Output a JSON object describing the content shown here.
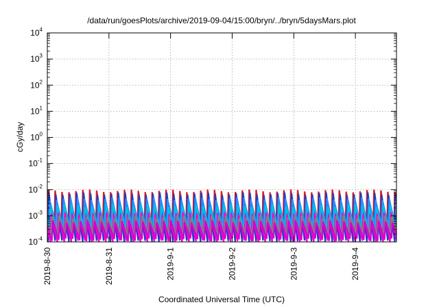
{
  "chart_data": {
    "type": "line",
    "title": "/data/run/goesPlots/archive/2019-09-04/15:00/bryn/../bryn/5daysMars.plot",
    "xlabel": "Coordinated Universal Time (UTC)",
    "ylabel": "cGy/day",
    "yscale": "log",
    "ylim": [
      0.0001,
      10000
    ],
    "ytick_labels": [
      {
        "base": "10",
        "exp": "-4"
      },
      {
        "base": "10",
        "exp": "-3"
      },
      {
        "base": "10",
        "exp": "-2"
      },
      {
        "base": "10",
        "exp": "-1"
      },
      {
        "base": "10",
        "exp": "0"
      },
      {
        "base": "10",
        "exp": "1"
      },
      {
        "base": "10",
        "exp": "2"
      },
      {
        "base": "10",
        "exp": "3"
      },
      {
        "base": "10",
        "exp": "4"
      }
    ],
    "xlim": [
      "2019-08-30 00:00",
      "2019-09-04 16:00"
    ],
    "xtick_labels": [
      "2019-8-30",
      "2019-8-31",
      "2019-9-1",
      "2019-9-2",
      "2019-9-3",
      "2019-9-4"
    ],
    "grid": true,
    "legend": "none",
    "series_pattern": {
      "shape": "sawtooth",
      "period_hours": 2.7,
      "note_values": "approximate per-series min and max levels read off the log axis"
    },
    "series": [
      {
        "color": "#e41a1c",
        "min": 0.0002,
        "max": 0.009
      },
      {
        "color": "#1f3fbf",
        "min": 0.0001,
        "max": 0.007
      },
      {
        "color": "#2b8cff",
        "min": 0.0004,
        "max": 0.0045
      },
      {
        "color": "#00c0e0",
        "min": 0.0002,
        "max": 0.0025
      },
      {
        "color": "#ff00d0",
        "min": 0.0001,
        "max": 0.0012
      },
      {
        "color": "#808080",
        "min": 0.0002,
        "max": 0.0009
      },
      {
        "color": "#d400d4",
        "min": 0.00012,
        "max": 0.0006
      }
    ]
  }
}
